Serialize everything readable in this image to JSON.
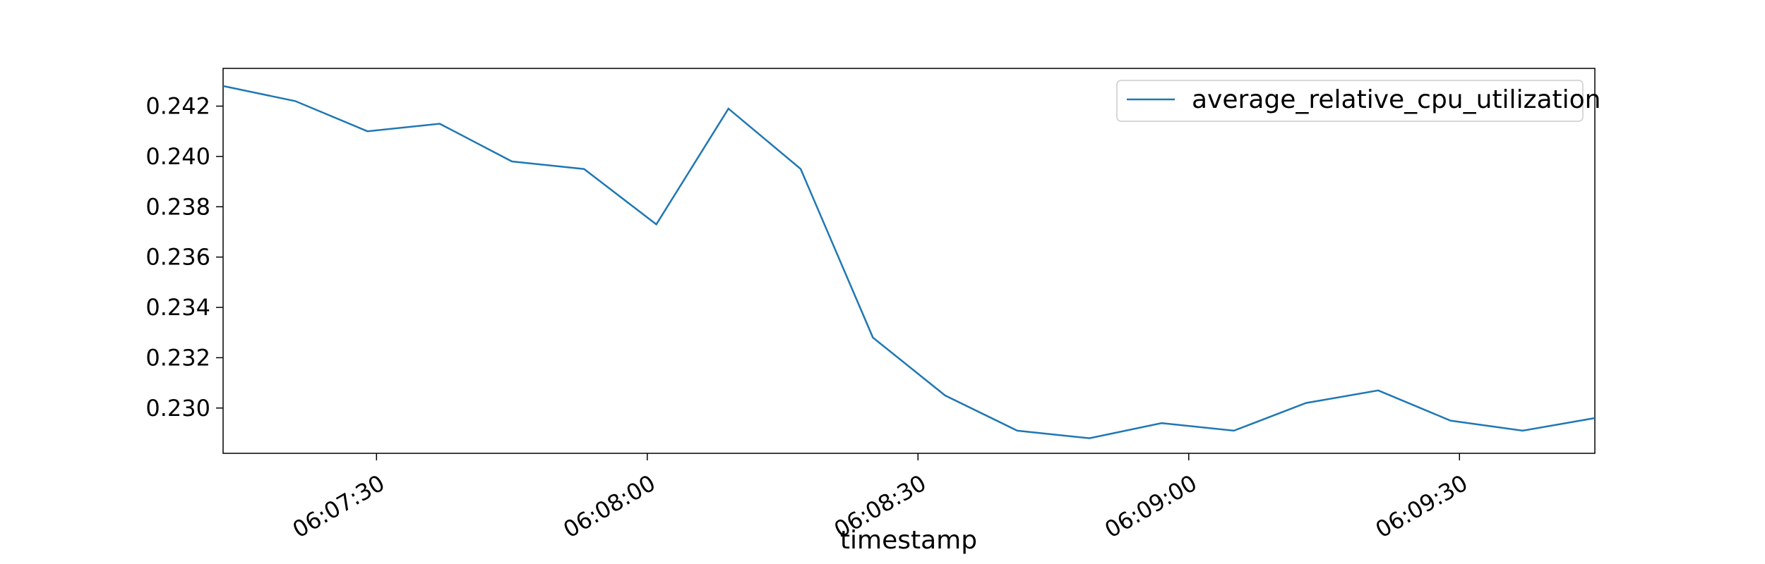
{
  "chart_data": {
    "type": "line",
    "title": "",
    "xlabel": "timestamp",
    "ylabel": "",
    "x_ticks": [
      "06:07:30",
      "06:08:00",
      "06:08:30",
      "06:09:00",
      "06:09:30"
    ],
    "y_ticks": [
      "0.230",
      "0.232",
      "0.234",
      "0.236",
      "0.238",
      "0.240",
      "0.242"
    ],
    "xlim": [
      "06:07:13",
      "06:09:45"
    ],
    "ylim": [
      0.2282,
      0.2435
    ],
    "legend_position": "top-right",
    "grid": false,
    "series": [
      {
        "name": "average_relative_cpu_utilization",
        "color": "#1f77b4",
        "x": [
          "06:07:13",
          "06:07:21",
          "06:07:29",
          "06:07:37",
          "06:07:45",
          "06:07:53",
          "06:08:01",
          "06:08:09",
          "06:08:17",
          "06:08:25",
          "06:08:33",
          "06:08:41",
          "06:08:49",
          "06:08:57",
          "06:09:05",
          "06:09:13",
          "06:09:21",
          "06:09:29",
          "06:09:37",
          "06:09:45"
        ],
        "values": [
          0.2428,
          0.2422,
          0.241,
          0.2413,
          0.2398,
          0.2395,
          0.2373,
          0.2419,
          0.2395,
          0.2328,
          0.2305,
          0.2291,
          0.2288,
          0.2294,
          0.2291,
          0.2302,
          0.2307,
          0.2295,
          0.2291,
          0.2296
        ]
      }
    ]
  }
}
